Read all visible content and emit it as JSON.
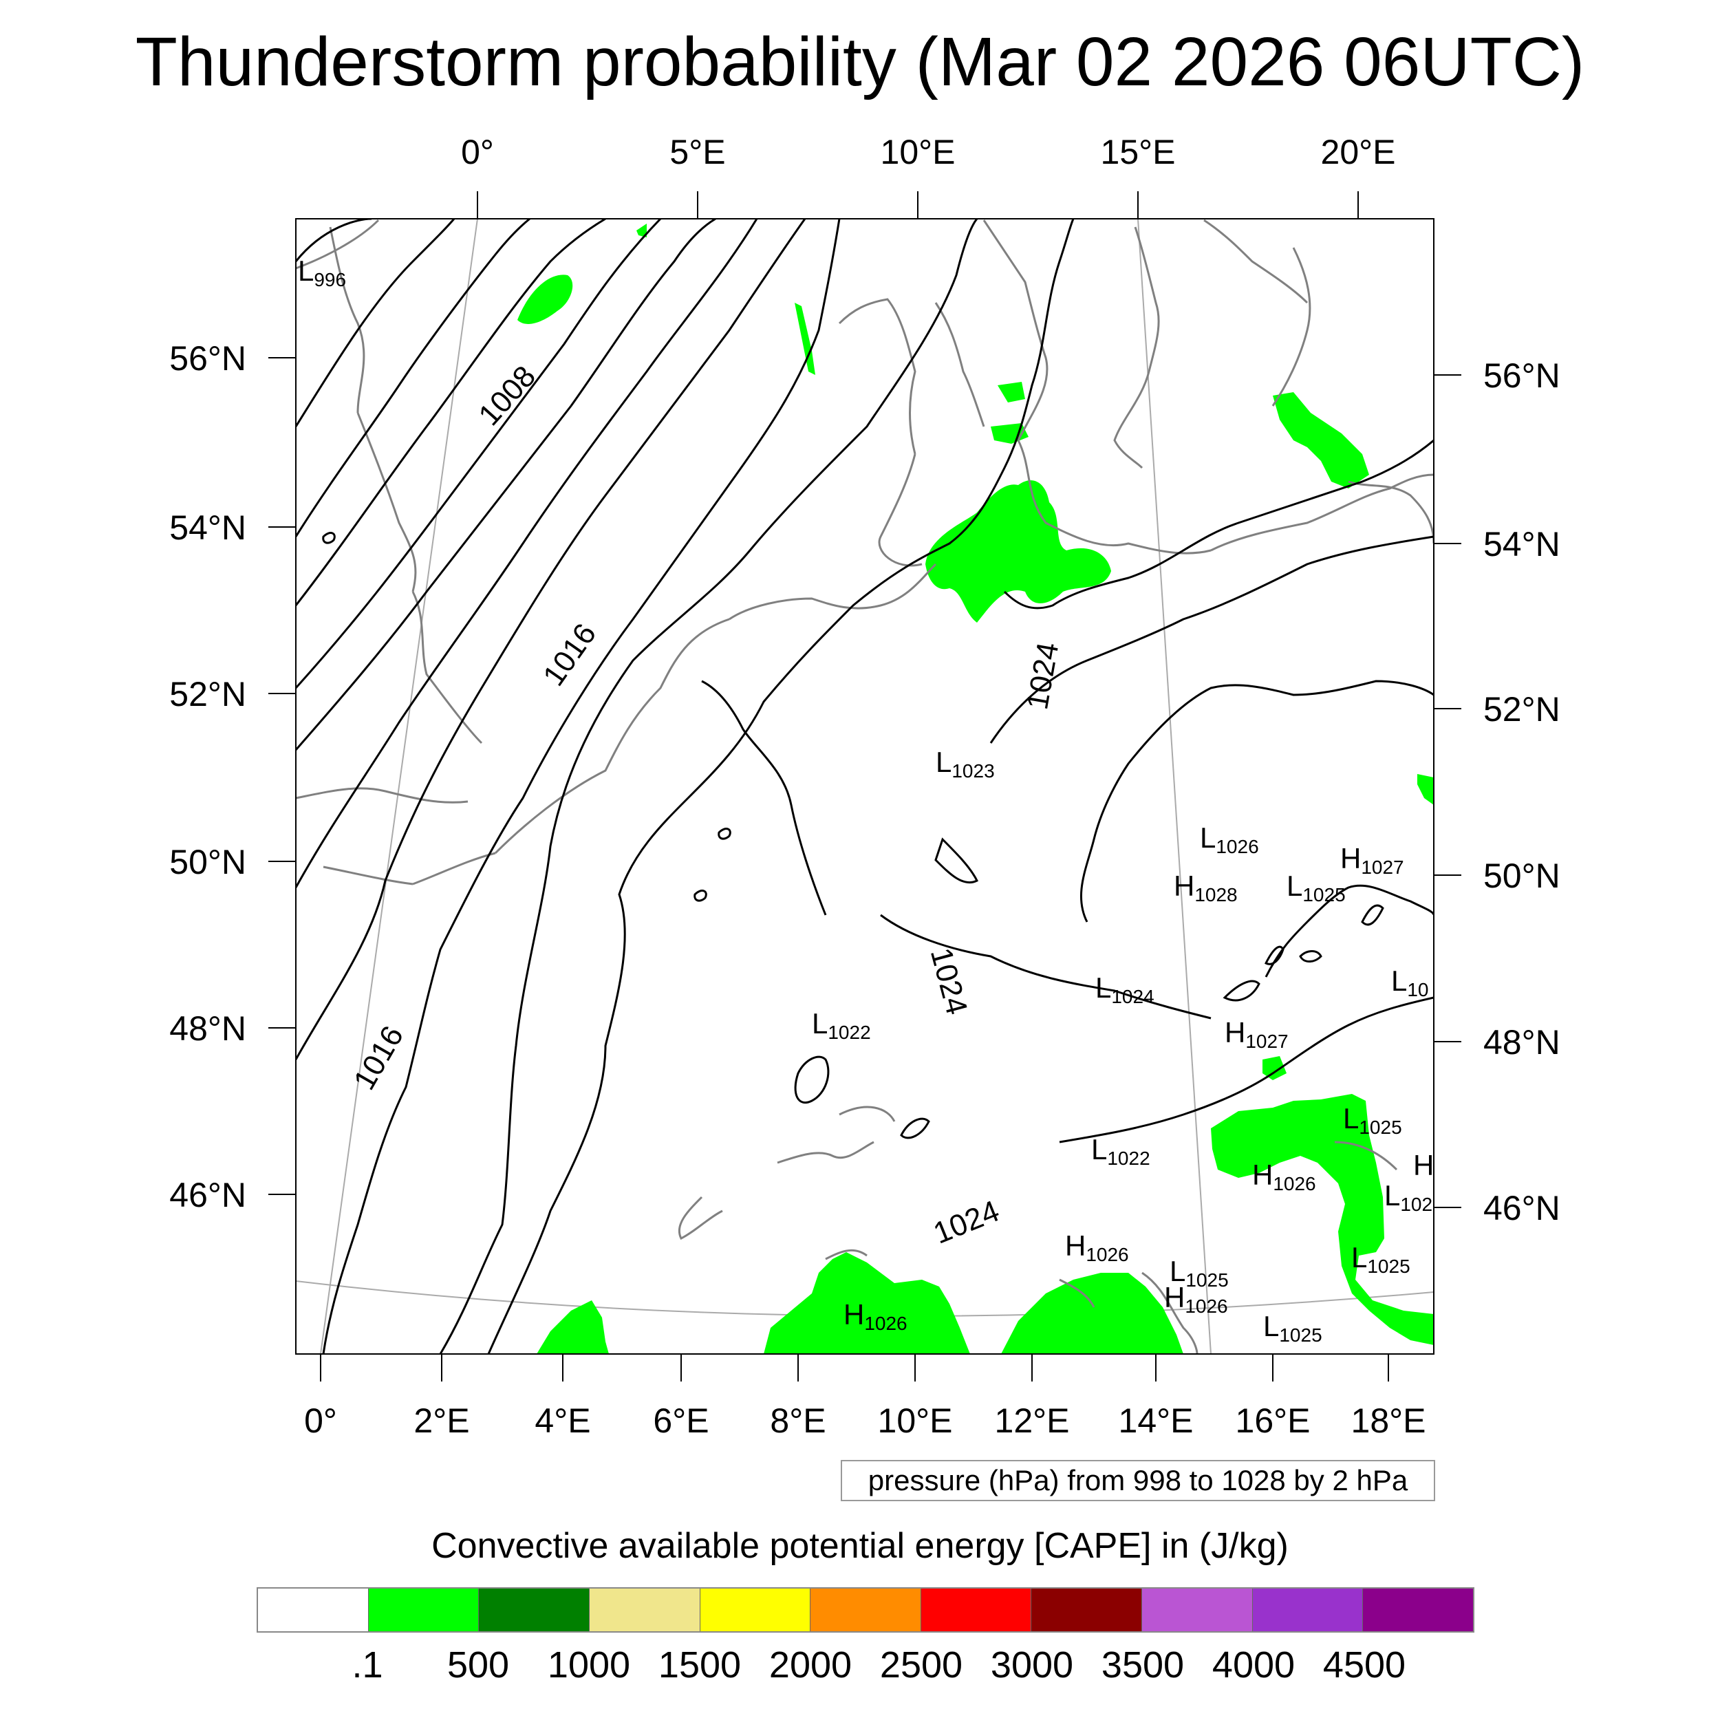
{
  "title": "Thunderstorm probability (Mar 02 2026 06UTC)",
  "map": {
    "top_lon_labels": [
      "0°",
      "5°E",
      "10°E",
      "15°E",
      "20°E"
    ],
    "bottom_lon_labels": [
      "0°",
      "2°E",
      "4°E",
      "6°E",
      "8°E",
      "10°E",
      "12°E",
      "14°E",
      "16°E",
      "18°E"
    ],
    "left_lat_labels": [
      "56°N",
      "54°N",
      "52°N",
      "50°N",
      "48°N",
      "46°N"
    ],
    "right_lat_labels": [
      "56°N",
      "54°N",
      "52°N",
      "50°N",
      "48°N",
      "46°N"
    ],
    "isobar_labels": [
      "1008",
      "1016",
      "1016",
      "1024",
      "1024",
      "1024"
    ],
    "pressure_centers": [
      {
        "type": "L",
        "value": "996"
      },
      {
        "type": "L",
        "value": "1023"
      },
      {
        "type": "L",
        "value": "1026"
      },
      {
        "type": "H",
        "value": "1027"
      },
      {
        "type": "H",
        "value": "1028"
      },
      {
        "type": "L",
        "value": "1025"
      },
      {
        "type": "L",
        "value": "10"
      },
      {
        "type": "L",
        "value": "1024"
      },
      {
        "type": "L",
        "value": "1022"
      },
      {
        "type": "H",
        "value": "1027"
      },
      {
        "type": "L",
        "value": "1025"
      },
      {
        "type": "L",
        "value": "1022"
      },
      {
        "type": "H",
        "value": "1026"
      },
      {
        "type": "H",
        "value": ""
      },
      {
        "type": "L",
        "value": "102"
      },
      {
        "type": "H",
        "value": "1026"
      },
      {
        "type": "L",
        "value": "1025"
      },
      {
        "type": "L",
        "value": "1025"
      },
      {
        "type": "H",
        "value": "1026"
      },
      {
        "type": "H",
        "value": "1026"
      },
      {
        "type": "L",
        "value": "1025"
      }
    ],
    "cape_color": "#00ff00",
    "coast_color": "#808080",
    "isobar_color": "#000000"
  },
  "pressure_note": "pressure (hPa) from 998 to 1028 by 2 hPa",
  "colorbar": {
    "title": "Convective available potential energy [CAPE] in (J/kg)",
    "colors": [
      "#ffffff",
      "#00ff00",
      "#008000",
      "#f0e68c",
      "#ffff00",
      "#ff8c00",
      "#ff0000",
      "#8b0000",
      "#ba55d3",
      "#9932cc",
      "#8b008b"
    ],
    "labels": [
      ".1",
      "500",
      "1000",
      "1500",
      "2000",
      "2500",
      "3000",
      "3500",
      "4000",
      "4500"
    ]
  }
}
